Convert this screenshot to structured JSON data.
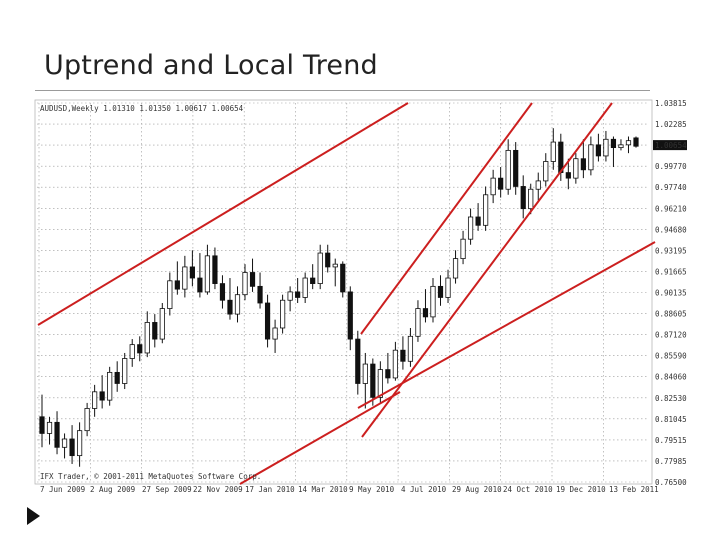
{
  "slide": {
    "title": "Uptrend and Local Trend",
    "bullet_icon": "triangle-bullet-icon"
  },
  "chart_data": {
    "type": "candlestick",
    "header": "AUDUSD,Weekly  1.01310 1.01350 1.00617 1.00654",
    "copyright": "IFX Trader, © 2001-2011 MetaQuotes Software Corp.",
    "current_price_label": "1.00654",
    "ylim": [
      0.765,
      1.03815
    ],
    "y_ticks": [
      "1.03815",
      "1.02285",
      "1.00654",
      "0.99770",
      "0.97740",
      "0.96210",
      "0.94680",
      "0.93195",
      "0.91665",
      "0.90135",
      "0.88605",
      "0.87120",
      "0.85590",
      "0.84060",
      "0.82530",
      "0.81045",
      "0.79515",
      "0.77985",
      "0.76500"
    ],
    "x_tick_labels": [
      "7 Jun 2009",
      "2 Aug 2009",
      "27 Sep 2009",
      "22 Nov 2009",
      "17 Jan 2010",
      "14 Mar 2010",
      "9 May 2010",
      "4 Jul 2010",
      "29 Aug 2010",
      "24 Oct 2010",
      "19 Dec 2010",
      "13 Feb 2011"
    ],
    "candles": [
      {
        "o": 0.812,
        "h": 0.828,
        "l": 0.79,
        "c": 0.8
      },
      {
        "o": 0.8,
        "h": 0.812,
        "l": 0.792,
        "c": 0.808
      },
      {
        "o": 0.808,
        "h": 0.816,
        "l": 0.785,
        "c": 0.79
      },
      {
        "o": 0.79,
        "h": 0.8,
        "l": 0.782,
        "c": 0.796
      },
      {
        "o": 0.796,
        "h": 0.806,
        "l": 0.778,
        "c": 0.784
      },
      {
        "o": 0.784,
        "h": 0.808,
        "l": 0.776,
        "c": 0.802
      },
      {
        "o": 0.802,
        "h": 0.822,
        "l": 0.798,
        "c": 0.818
      },
      {
        "o": 0.818,
        "h": 0.835,
        "l": 0.812,
        "c": 0.83
      },
      {
        "o": 0.83,
        "h": 0.842,
        "l": 0.818,
        "c": 0.824
      },
      {
        "o": 0.824,
        "h": 0.848,
        "l": 0.82,
        "c": 0.844
      },
      {
        "o": 0.844,
        "h": 0.852,
        "l": 0.83,
        "c": 0.836
      },
      {
        "o": 0.836,
        "h": 0.858,
        "l": 0.832,
        "c": 0.854
      },
      {
        "o": 0.854,
        "h": 0.868,
        "l": 0.848,
        "c": 0.864
      },
      {
        "o": 0.864,
        "h": 0.87,
        "l": 0.852,
        "c": 0.858
      },
      {
        "o": 0.858,
        "h": 0.888,
        "l": 0.855,
        "c": 0.88
      },
      {
        "o": 0.88,
        "h": 0.886,
        "l": 0.862,
        "c": 0.868
      },
      {
        "o": 0.868,
        "h": 0.894,
        "l": 0.865,
        "c": 0.89
      },
      {
        "o": 0.89,
        "h": 0.916,
        "l": 0.885,
        "c": 0.91
      },
      {
        "o": 0.91,
        "h": 0.924,
        "l": 0.9,
        "c": 0.904
      },
      {
        "o": 0.904,
        "h": 0.928,
        "l": 0.898,
        "c": 0.92
      },
      {
        "o": 0.92,
        "h": 0.932,
        "l": 0.906,
        "c": 0.912
      },
      {
        "o": 0.912,
        "h": 0.93,
        "l": 0.898,
        "c": 0.902
      },
      {
        "o": 0.902,
        "h": 0.936,
        "l": 0.9,
        "c": 0.928
      },
      {
        "o": 0.928,
        "h": 0.934,
        "l": 0.904,
        "c": 0.908
      },
      {
        "o": 0.908,
        "h": 0.914,
        "l": 0.89,
        "c": 0.896
      },
      {
        "o": 0.896,
        "h": 0.912,
        "l": 0.882,
        "c": 0.886
      },
      {
        "o": 0.886,
        "h": 0.906,
        "l": 0.88,
        "c": 0.9
      },
      {
        "o": 0.9,
        "h": 0.922,
        "l": 0.896,
        "c": 0.916
      },
      {
        "o": 0.916,
        "h": 0.926,
        "l": 0.902,
        "c": 0.906
      },
      {
        "o": 0.906,
        "h": 0.916,
        "l": 0.89,
        "c": 0.894
      },
      {
        "o": 0.894,
        "h": 0.9,
        "l": 0.862,
        "c": 0.868
      },
      {
        "o": 0.868,
        "h": 0.882,
        "l": 0.858,
        "c": 0.876
      },
      {
        "o": 0.876,
        "h": 0.9,
        "l": 0.872,
        "c": 0.896
      },
      {
        "o": 0.896,
        "h": 0.906,
        "l": 0.888,
        "c": 0.902
      },
      {
        "o": 0.902,
        "h": 0.912,
        "l": 0.894,
        "c": 0.898
      },
      {
        "o": 0.898,
        "h": 0.916,
        "l": 0.894,
        "c": 0.912
      },
      {
        "o": 0.912,
        "h": 0.922,
        "l": 0.904,
        "c": 0.908
      },
      {
        "o": 0.908,
        "h": 0.936,
        "l": 0.904,
        "c": 0.93
      },
      {
        "o": 0.93,
        "h": 0.936,
        "l": 0.916,
        "c": 0.92
      },
      {
        "o": 0.92,
        "h": 0.926,
        "l": 0.906,
        "c": 0.922
      },
      {
        "o": 0.922,
        "h": 0.924,
        "l": 0.898,
        "c": 0.902
      },
      {
        "o": 0.902,
        "h": 0.906,
        "l": 0.86,
        "c": 0.868
      },
      {
        "o": 0.868,
        "h": 0.874,
        "l": 0.828,
        "c": 0.836
      },
      {
        "o": 0.836,
        "h": 0.858,
        "l": 0.818,
        "c": 0.85
      },
      {
        "o": 0.85,
        "h": 0.854,
        "l": 0.82,
        "c": 0.826
      },
      {
        "o": 0.826,
        "h": 0.852,
        "l": 0.822,
        "c": 0.846
      },
      {
        "o": 0.846,
        "h": 0.858,
        "l": 0.836,
        "c": 0.84
      },
      {
        "o": 0.84,
        "h": 0.866,
        "l": 0.838,
        "c": 0.86
      },
      {
        "o": 0.86,
        "h": 0.87,
        "l": 0.846,
        "c": 0.852
      },
      {
        "o": 0.852,
        "h": 0.876,
        "l": 0.848,
        "c": 0.87
      },
      {
        "o": 0.87,
        "h": 0.896,
        "l": 0.866,
        "c": 0.89
      },
      {
        "o": 0.89,
        "h": 0.904,
        "l": 0.88,
        "c": 0.884
      },
      {
        "o": 0.884,
        "h": 0.912,
        "l": 0.88,
        "c": 0.906
      },
      {
        "o": 0.906,
        "h": 0.914,
        "l": 0.892,
        "c": 0.898
      },
      {
        "o": 0.898,
        "h": 0.918,
        "l": 0.894,
        "c": 0.912
      },
      {
        "o": 0.912,
        "h": 0.932,
        "l": 0.908,
        "c": 0.926
      },
      {
        "o": 0.926,
        "h": 0.946,
        "l": 0.922,
        "c": 0.94
      },
      {
        "o": 0.94,
        "h": 0.962,
        "l": 0.936,
        "c": 0.956
      },
      {
        "o": 0.956,
        "h": 0.966,
        "l": 0.946,
        "c": 0.95
      },
      {
        "o": 0.95,
        "h": 0.978,
        "l": 0.946,
        "c": 0.972
      },
      {
        "o": 0.972,
        "h": 0.99,
        "l": 0.966,
        "c": 0.984
      },
      {
        "o": 0.984,
        "h": 0.992,
        "l": 0.97,
        "c": 0.976
      },
      {
        "o": 0.976,
        "h": 1.012,
        "l": 0.972,
        "c": 1.004
      },
      {
        "o": 1.004,
        "h": 1.01,
        "l": 0.972,
        "c": 0.978
      },
      {
        "o": 0.978,
        "h": 0.986,
        "l": 0.955,
        "c": 0.962
      },
      {
        "o": 0.962,
        "h": 0.98,
        "l": 0.958,
        "c": 0.976
      },
      {
        "o": 0.976,
        "h": 0.988,
        "l": 0.968,
        "c": 0.982
      },
      {
        "o": 0.982,
        "h": 1.002,
        "l": 0.978,
        "c": 0.996
      },
      {
        "o": 0.996,
        "h": 1.02,
        "l": 0.99,
        "c": 1.01
      },
      {
        "o": 1.01,
        "h": 1.016,
        "l": 0.982,
        "c": 0.988
      },
      {
        "o": 0.988,
        "h": 0.998,
        "l": 0.976,
        "c": 0.984
      },
      {
        "o": 0.984,
        "h": 1.002,
        "l": 0.98,
        "c": 0.998
      },
      {
        "o": 0.998,
        "h": 1.012,
        "l": 0.984,
        "c": 0.99
      },
      {
        "o": 0.99,
        "h": 1.014,
        "l": 0.986,
        "c": 1.008
      },
      {
        "o": 1.008,
        "h": 1.016,
        "l": 0.996,
        "c": 1.0
      },
      {
        "o": 1.0,
        "h": 1.018,
        "l": 0.996,
        "c": 1.012
      },
      {
        "o": 1.012,
        "h": 1.014,
        "l": 0.992,
        "c": 1.006
      },
      {
        "o": 1.006,
        "h": 1.012,
        "l": 1.004,
        "c": 1.008
      },
      {
        "o": 1.008,
        "h": 1.014,
        "l": 1.002,
        "c": 1.011
      },
      {
        "o": 1.013,
        "h": 1.014,
        "l": 1.006,
        "c": 1.007
      }
    ],
    "trendlines_color": "#cc1f1f",
    "candle_color": "#111111",
    "grid": "dotted"
  }
}
